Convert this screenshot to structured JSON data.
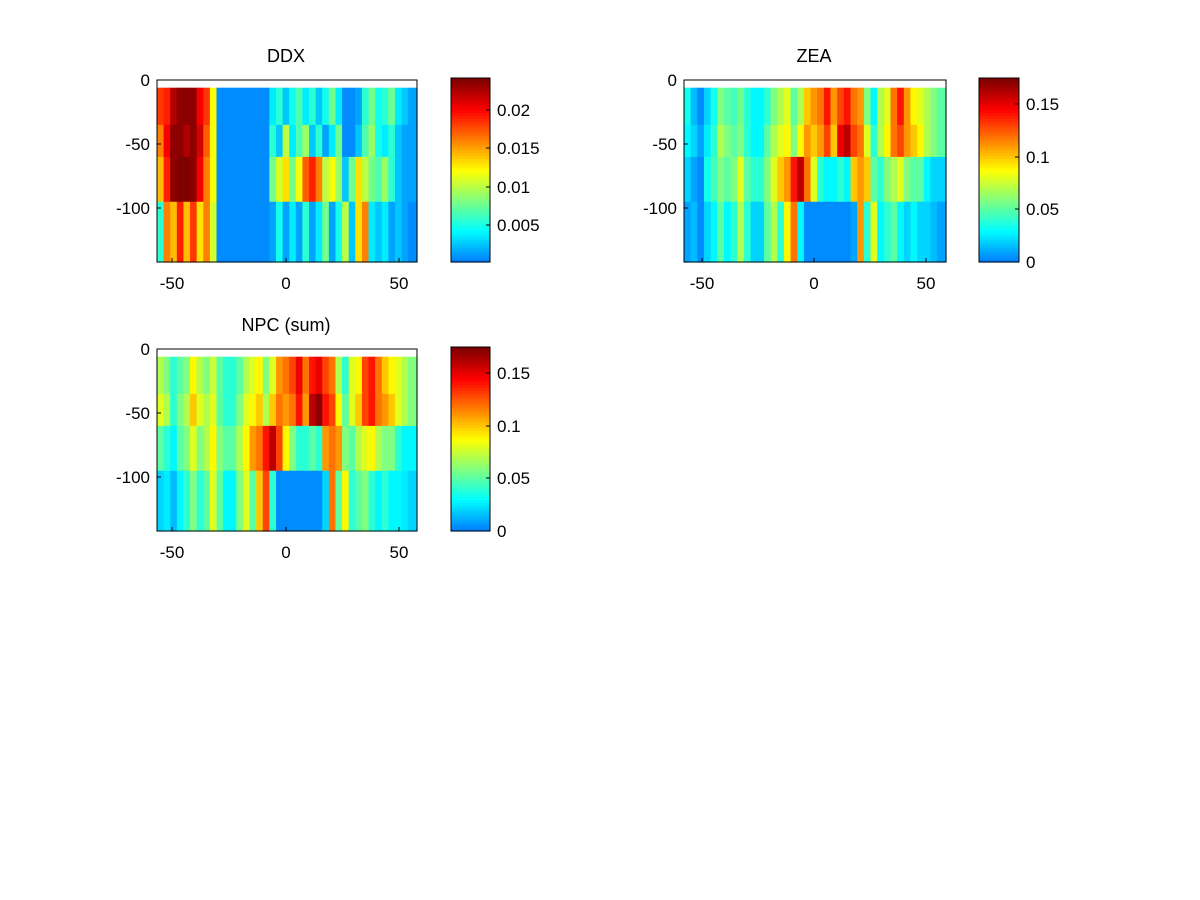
{
  "chart_data": [
    {
      "type": "heatmap",
      "title": "DDX",
      "xlabel": "",
      "ylabel": "",
      "xlim": [
        -58,
        60
      ],
      "ylim": [
        -142,
        0
      ],
      "x_ticks": [
        "-50",
        "0",
        "50"
      ],
      "y_ticks": [
        "0",
        "-50",
        "-100"
      ],
      "colorbar": {
        "range": [
          0.0006,
          0.0237
        ],
        "ticks": [
          "0.005",
          "0.01",
          "0.015",
          "0.02"
        ]
      },
      "row_bands": [
        [
          -6,
          -35
        ],
        [
          -35,
          -60
        ],
        [
          -60,
          -95
        ],
        [
          -95,
          -142
        ]
      ],
      "x_edges": [
        -58,
        -55,
        -52,
        -49,
        -46,
        -43,
        -40,
        -37,
        -34,
        -31,
        -28,
        -25,
        -22,
        -19,
        -16,
        -13,
        -10,
        -7,
        -4,
        -1,
        2,
        5,
        8,
        11,
        14,
        17,
        20,
        23,
        26,
        29,
        32,
        35,
        38,
        41,
        44,
        47,
        50,
        53,
        56,
        60
      ],
      "values": [
        [
          0.018,
          0.019,
          0.022,
          0.023,
          0.023,
          0.023,
          0.02,
          0.018,
          0.012,
          0.001,
          0.001,
          0.001,
          0.001,
          0.001,
          0.001,
          0.001,
          0.001,
          0.004,
          0.006,
          0.003,
          0.005,
          0.007,
          0.004,
          0.006,
          0.003,
          0.005,
          0.008,
          0.004,
          0.001,
          0.001,
          0.002,
          0.006,
          0.008,
          0.005,
          0.006,
          0.008,
          0.004,
          0.003,
          0.002
        ],
        [
          0.016,
          0.02,
          0.023,
          0.023,
          0.022,
          0.023,
          0.021,
          0.017,
          0.012,
          0.001,
          0.001,
          0.001,
          0.001,
          0.001,
          0.001,
          0.001,
          0.001,
          0.006,
          0.003,
          0.01,
          0.004,
          0.007,
          0.009,
          0.003,
          0.006,
          0.002,
          0.004,
          0.008,
          0.001,
          0.001,
          0.003,
          0.007,
          0.009,
          0.005,
          0.004,
          0.006,
          0.003,
          0.002,
          0.002
        ],
        [
          0.014,
          0.019,
          0.023,
          0.024,
          0.024,
          0.023,
          0.02,
          0.016,
          0.012,
          0.001,
          0.001,
          0.001,
          0.001,
          0.001,
          0.001,
          0.001,
          0.001,
          0.008,
          0.011,
          0.013,
          0.008,
          0.012,
          0.017,
          0.019,
          0.016,
          0.01,
          0.012,
          0.009,
          0.003,
          0.008,
          0.013,
          0.01,
          0.008,
          0.007,
          0.009,
          0.006,
          0.003,
          0.002,
          0.002
        ],
        [
          0.006,
          0.016,
          0.014,
          0.019,
          0.014,
          0.018,
          0.013,
          0.016,
          0.011,
          0.001,
          0.001,
          0.001,
          0.001,
          0.001,
          0.001,
          0.001,
          0.001,
          0.002,
          0.005,
          0.002,
          0.004,
          0.002,
          0.006,
          0.002,
          0.004,
          0.008,
          0.002,
          0.005,
          0.01,
          0.003,
          0.013,
          0.016,
          0.004,
          0.003,
          0.004,
          0.002,
          0.003,
          0.002,
          0.001
        ]
      ]
    },
    {
      "type": "heatmap",
      "title": "ZEA",
      "xlabel": "",
      "ylabel": "",
      "xlim": [
        -58,
        60
      ],
      "ylim": [
        -142,
        0
      ],
      "x_ticks": [
        "-50",
        "0",
        "50"
      ],
      "y_ticks": [
        "0",
        "-50",
        "-100"
      ],
      "colorbar": {
        "range": [
          0,
          0.175
        ],
        "ticks": [
          "0",
          "0.05",
          "0.1",
          "0.15"
        ]
      },
      "row_bands": [
        [
          -6,
          -35
        ],
        [
          -35,
          -60
        ],
        [
          -60,
          -95
        ],
        [
          -95,
          -142
        ]
      ],
      "x_edges": [
        -58,
        -55,
        -52,
        -49,
        -46,
        -43,
        -40,
        -37,
        -34,
        -31,
        -28,
        -25,
        -22,
        -19,
        -16,
        -13,
        -10,
        -7,
        -4,
        -1,
        2,
        5,
        8,
        11,
        14,
        17,
        20,
        23,
        26,
        29,
        32,
        35,
        38,
        41,
        44,
        47,
        50,
        53,
        56,
        60
      ],
      "values": [
        [
          0.035,
          0.015,
          0.005,
          0.02,
          0.035,
          0.06,
          0.05,
          0.045,
          0.055,
          0.04,
          0.03,
          0.03,
          0.04,
          0.06,
          0.07,
          0.08,
          0.05,
          0.07,
          0.1,
          0.11,
          0.12,
          0.14,
          0.11,
          0.13,
          0.14,
          0.12,
          0.11,
          0.06,
          0.03,
          0.07,
          0.08,
          0.12,
          0.14,
          0.11,
          0.09,
          0.08,
          0.07,
          0.06,
          0.05
        ],
        [
          0.03,
          0.02,
          0.01,
          0.025,
          0.04,
          0.07,
          0.06,
          0.05,
          0.06,
          0.04,
          0.03,
          0.03,
          0.05,
          0.07,
          0.08,
          0.09,
          0.06,
          0.09,
          0.11,
          0.1,
          0.11,
          0.13,
          0.1,
          0.15,
          0.16,
          0.13,
          0.12,
          0.08,
          0.04,
          0.07,
          0.09,
          0.12,
          0.13,
          0.11,
          0.1,
          0.09,
          0.07,
          0.06,
          0.05
        ],
        [
          0.02,
          0.01,
          0.005,
          0.035,
          0.045,
          0.06,
          0.05,
          0.06,
          0.08,
          0.05,
          0.04,
          0.04,
          0.06,
          0.08,
          0.1,
          0.11,
          0.14,
          0.16,
          0.12,
          0.08,
          0.04,
          0.03,
          0.03,
          0.04,
          0.03,
          0.1,
          0.11,
          0.1,
          0.05,
          0.04,
          0.06,
          0.07,
          0.08,
          0.06,
          0.05,
          0.05,
          0.03,
          0.02,
          0.02
        ],
        [
          0.01,
          0.015,
          0.005,
          0.02,
          0.03,
          0.05,
          0.03,
          0.04,
          0.07,
          0.04,
          0.02,
          0.02,
          0.05,
          0.07,
          0.04,
          0.09,
          0.12,
          0.03,
          0.005,
          0.005,
          0.005,
          0.005,
          0.005,
          0.005,
          0.005,
          0.01,
          0.11,
          0.04,
          0.08,
          0.03,
          0.04,
          0.05,
          0.03,
          0.02,
          0.03,
          0.02,
          0.02,
          0.015,
          0.01
        ]
      ]
    },
    {
      "type": "heatmap",
      "title": "NPC (sum)",
      "xlabel": "",
      "ylabel": "",
      "xlim": [
        -58,
        60
      ],
      "ylim": [
        -142,
        0
      ],
      "x_ticks": [
        "-50",
        "0",
        "50"
      ],
      "y_ticks": [
        "0",
        "-50",
        "-100"
      ],
      "colorbar": {
        "range": [
          0,
          0.175
        ],
        "ticks": [
          "0",
          "0.05",
          "0.1",
          "0.15"
        ]
      },
      "row_bands": [
        [
          -6,
          -35
        ],
        [
          -35,
          -60
        ],
        [
          -60,
          -95
        ],
        [
          -95,
          -142
        ]
      ],
      "x_edges": [
        -58,
        -55,
        -52,
        -49,
        -46,
        -43,
        -40,
        -37,
        -34,
        -31,
        -28,
        -25,
        -22,
        -19,
        -16,
        -13,
        -10,
        -7,
        -4,
        -1,
        2,
        5,
        8,
        11,
        14,
        17,
        20,
        23,
        26,
        29,
        32,
        35,
        38,
        41,
        44,
        47,
        50,
        53,
        56,
        60
      ],
      "values": [
        [
          0.07,
          0.06,
          0.04,
          0.05,
          0.06,
          0.09,
          0.07,
          0.06,
          0.075,
          0.05,
          0.04,
          0.04,
          0.05,
          0.07,
          0.08,
          0.09,
          0.06,
          0.08,
          0.11,
          0.12,
          0.13,
          0.15,
          0.12,
          0.14,
          0.15,
          0.13,
          0.12,
          0.07,
          0.04,
          0.08,
          0.09,
          0.13,
          0.14,
          0.12,
          0.1,
          0.09,
          0.08,
          0.07,
          0.06
        ],
        [
          0.08,
          0.07,
          0.04,
          0.06,
          0.07,
          0.1,
          0.08,
          0.07,
          0.08,
          0.05,
          0.04,
          0.04,
          0.06,
          0.08,
          0.09,
          0.1,
          0.07,
          0.1,
          0.12,
          0.11,
          0.12,
          0.14,
          0.11,
          0.16,
          0.17,
          0.14,
          0.13,
          0.09,
          0.05,
          0.08,
          0.1,
          0.13,
          0.14,
          0.12,
          0.11,
          0.1,
          0.08,
          0.07,
          0.06
        ],
        [
          0.05,
          0.04,
          0.03,
          0.05,
          0.06,
          0.08,
          0.06,
          0.07,
          0.09,
          0.06,
          0.05,
          0.05,
          0.07,
          0.09,
          0.11,
          0.12,
          0.14,
          0.16,
          0.13,
          0.09,
          0.06,
          0.04,
          0.04,
          0.05,
          0.04,
          0.11,
          0.12,
          0.11,
          0.06,
          0.05,
          0.07,
          0.08,
          0.09,
          0.07,
          0.06,
          0.06,
          0.04,
          0.03,
          0.03
        ],
        [
          0.02,
          0.025,
          0.015,
          0.03,
          0.04,
          0.06,
          0.04,
          0.05,
          0.08,
          0.05,
          0.03,
          0.03,
          0.06,
          0.08,
          0.05,
          0.1,
          0.13,
          0.04,
          0.005,
          0.005,
          0.005,
          0.005,
          0.005,
          0.005,
          0.005,
          0.02,
          0.12,
          0.05,
          0.09,
          0.04,
          0.05,
          0.06,
          0.04,
          0.03,
          0.04,
          0.03,
          0.03,
          0.025,
          0.02
        ]
      ]
    }
  ]
}
